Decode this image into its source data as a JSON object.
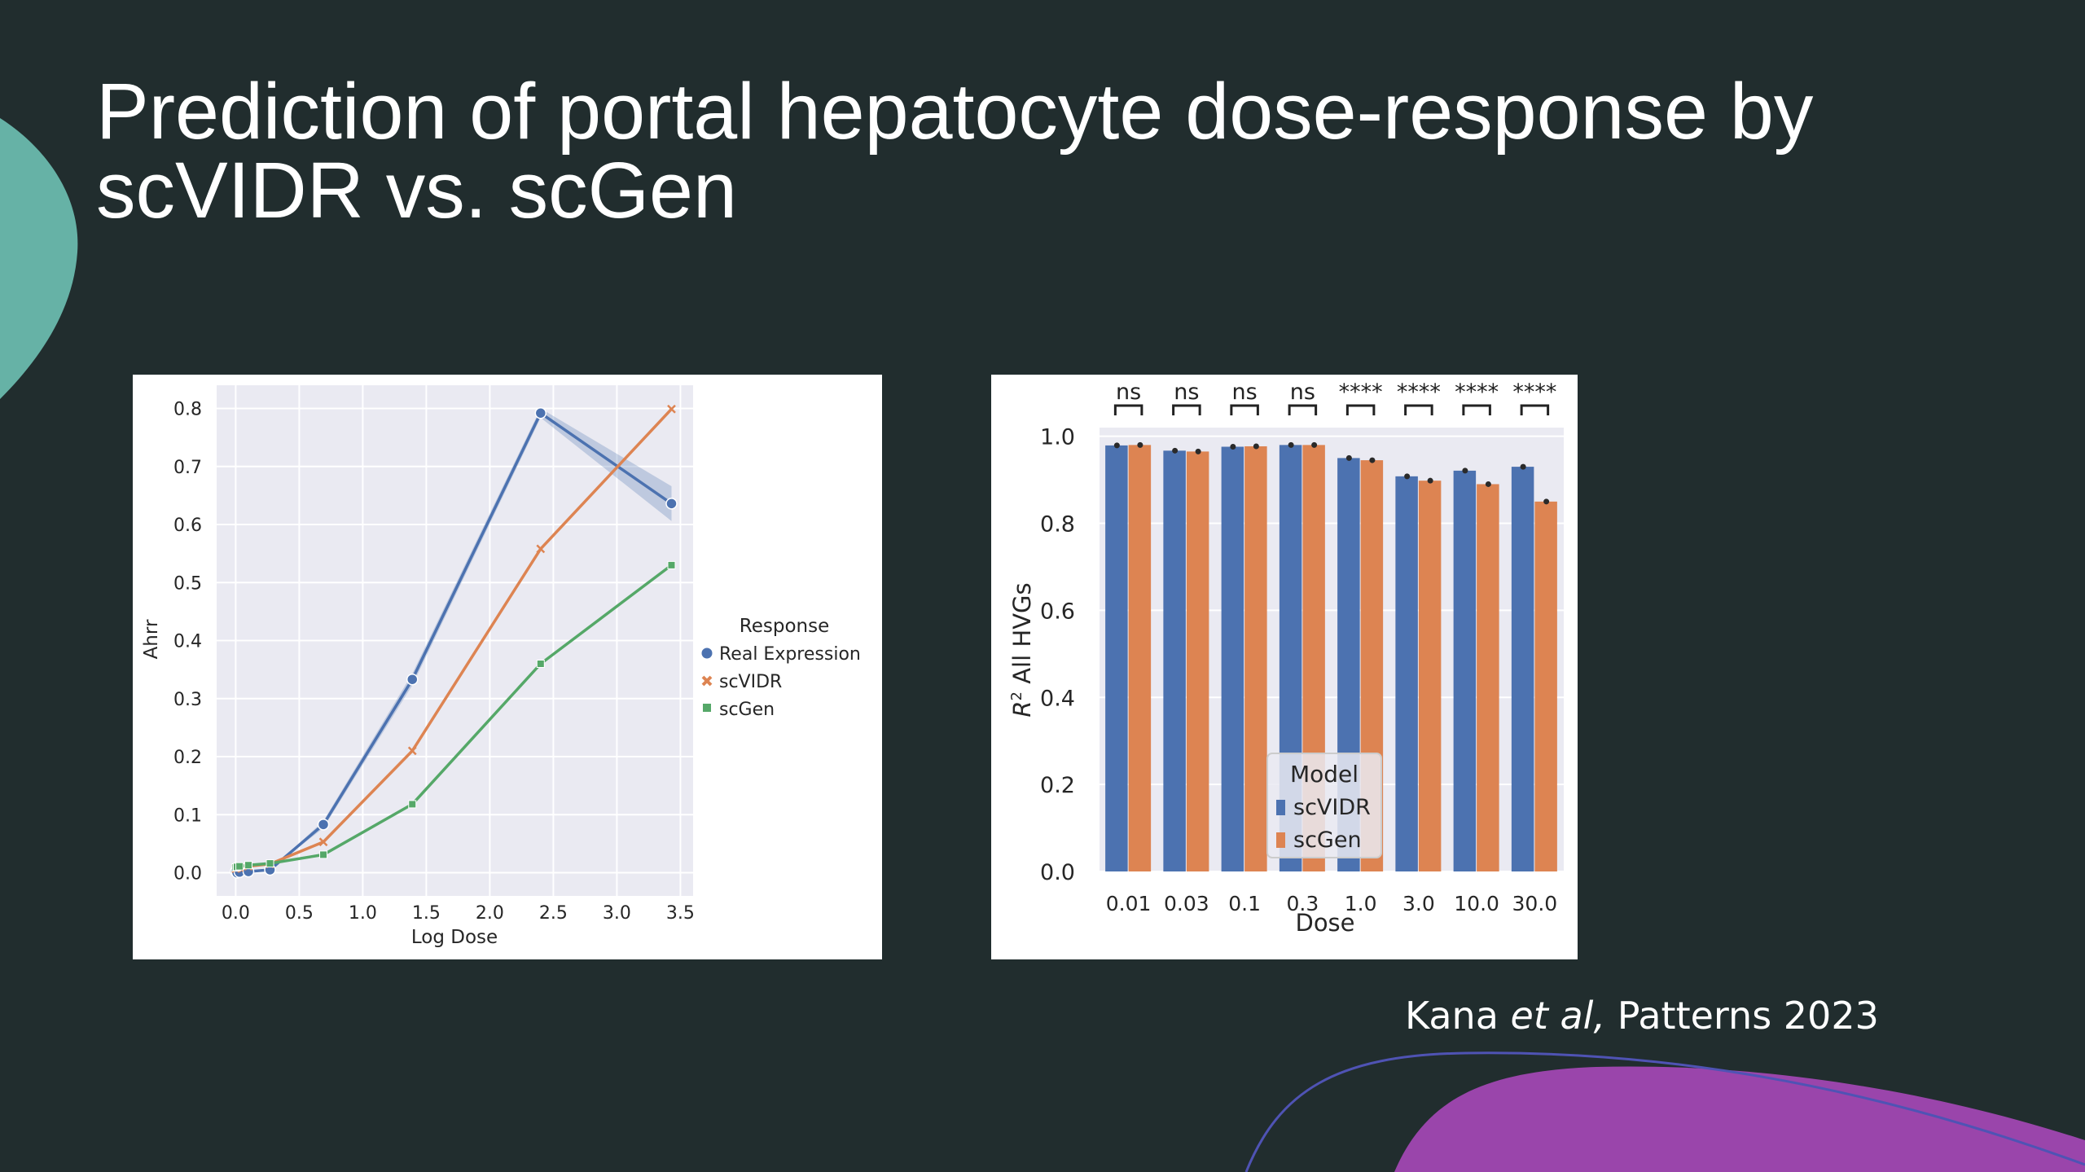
{
  "slide": {
    "title_line1": "Prediction of portal hepatocyte dose-response by",
    "title_line2": "scVIDR vs. scGen",
    "citation_author": "Kana ",
    "citation_etal": "et al,",
    "citation_rest": " Patterns 2023",
    "colors": {
      "background": "#212d2e",
      "teal_shape": "#66b2a6",
      "purple_shape": "#9a45ab",
      "blue_line": "#4f53b4"
    }
  },
  "chart_data": [
    {
      "type": "line",
      "xlabel": "Log Dose",
      "ylabel": "Ahrr",
      "xlim": [
        -0.15,
        3.6
      ],
      "ylim": [
        -0.04,
        0.84
      ],
      "xticks": [
        "0.0",
        "0.5",
        "1.0",
        "1.5",
        "2.0",
        "2.5",
        "3.0",
        "3.5"
      ],
      "yticks": [
        "0.0",
        "0.1",
        "0.2",
        "0.3",
        "0.4",
        "0.5",
        "0.6",
        "0.7",
        "0.8"
      ],
      "x": [
        0.0,
        0.01,
        0.03,
        0.1,
        0.27,
        0.69,
        1.39,
        2.4,
        3.43
      ],
      "legend_title": "Response",
      "legend_position": "right",
      "grid": true,
      "series": [
        {
          "name": "Real Expression",
          "marker": "circle",
          "color": "#4c72b0",
          "values": [
            0.002,
            0.0,
            0.001,
            0.002,
            0.005,
            0.083,
            0.333,
            0.792,
            0.636
          ],
          "band": [
            0.0,
            0.0,
            0.0,
            0.0,
            0.0,
            0.006,
            0.01,
            0.008,
            0.03
          ]
        },
        {
          "name": "scVIDR",
          "marker": "x",
          "color": "#dd8452",
          "values": [
            0.007,
            0.008,
            0.009,
            0.011,
            0.015,
            0.053,
            0.21,
            0.558,
            0.799
          ],
          "band": [
            0,
            0,
            0,
            0,
            0,
            0,
            0,
            0,
            0
          ]
        },
        {
          "name": "scGen",
          "marker": "square",
          "color": "#55a868",
          "values": [
            0.009,
            0.01,
            0.011,
            0.013,
            0.016,
            0.031,
            0.118,
            0.36,
            0.53
          ],
          "band": [
            0,
            0,
            0,
            0,
            0,
            0,
            0,
            0,
            0
          ]
        }
      ]
    },
    {
      "type": "bar",
      "xlabel": "Dose",
      "ylabel_main": "R",
      "ylabel_sup": "2",
      "ylabel_rest": " All HVGs",
      "ylim": [
        0,
        1.02
      ],
      "yticks": [
        "0.0",
        "0.2",
        "0.4",
        "0.6",
        "0.8",
        "1.0"
      ],
      "categories": [
        "0.01",
        "0.03",
        "0.1",
        "0.3",
        "1.0",
        "3.0",
        "10.0",
        "30.0"
      ],
      "significance": [
        "ns",
        "ns",
        "ns",
        "ns",
        "****",
        "****",
        "****",
        "****"
      ],
      "legend_title": "Model",
      "legend_position": "lower center",
      "grid": true,
      "series": [
        {
          "name": "scVIDR",
          "color": "#4c72b0",
          "values": [
            0.979,
            0.967,
            0.976,
            0.98,
            0.95,
            0.908,
            0.921,
            0.93
          ]
        },
        {
          "name": "scGen",
          "color": "#dd8452",
          "values": [
            0.98,
            0.965,
            0.977,
            0.98,
            0.945,
            0.898,
            0.89,
            0.85
          ]
        }
      ]
    }
  ]
}
